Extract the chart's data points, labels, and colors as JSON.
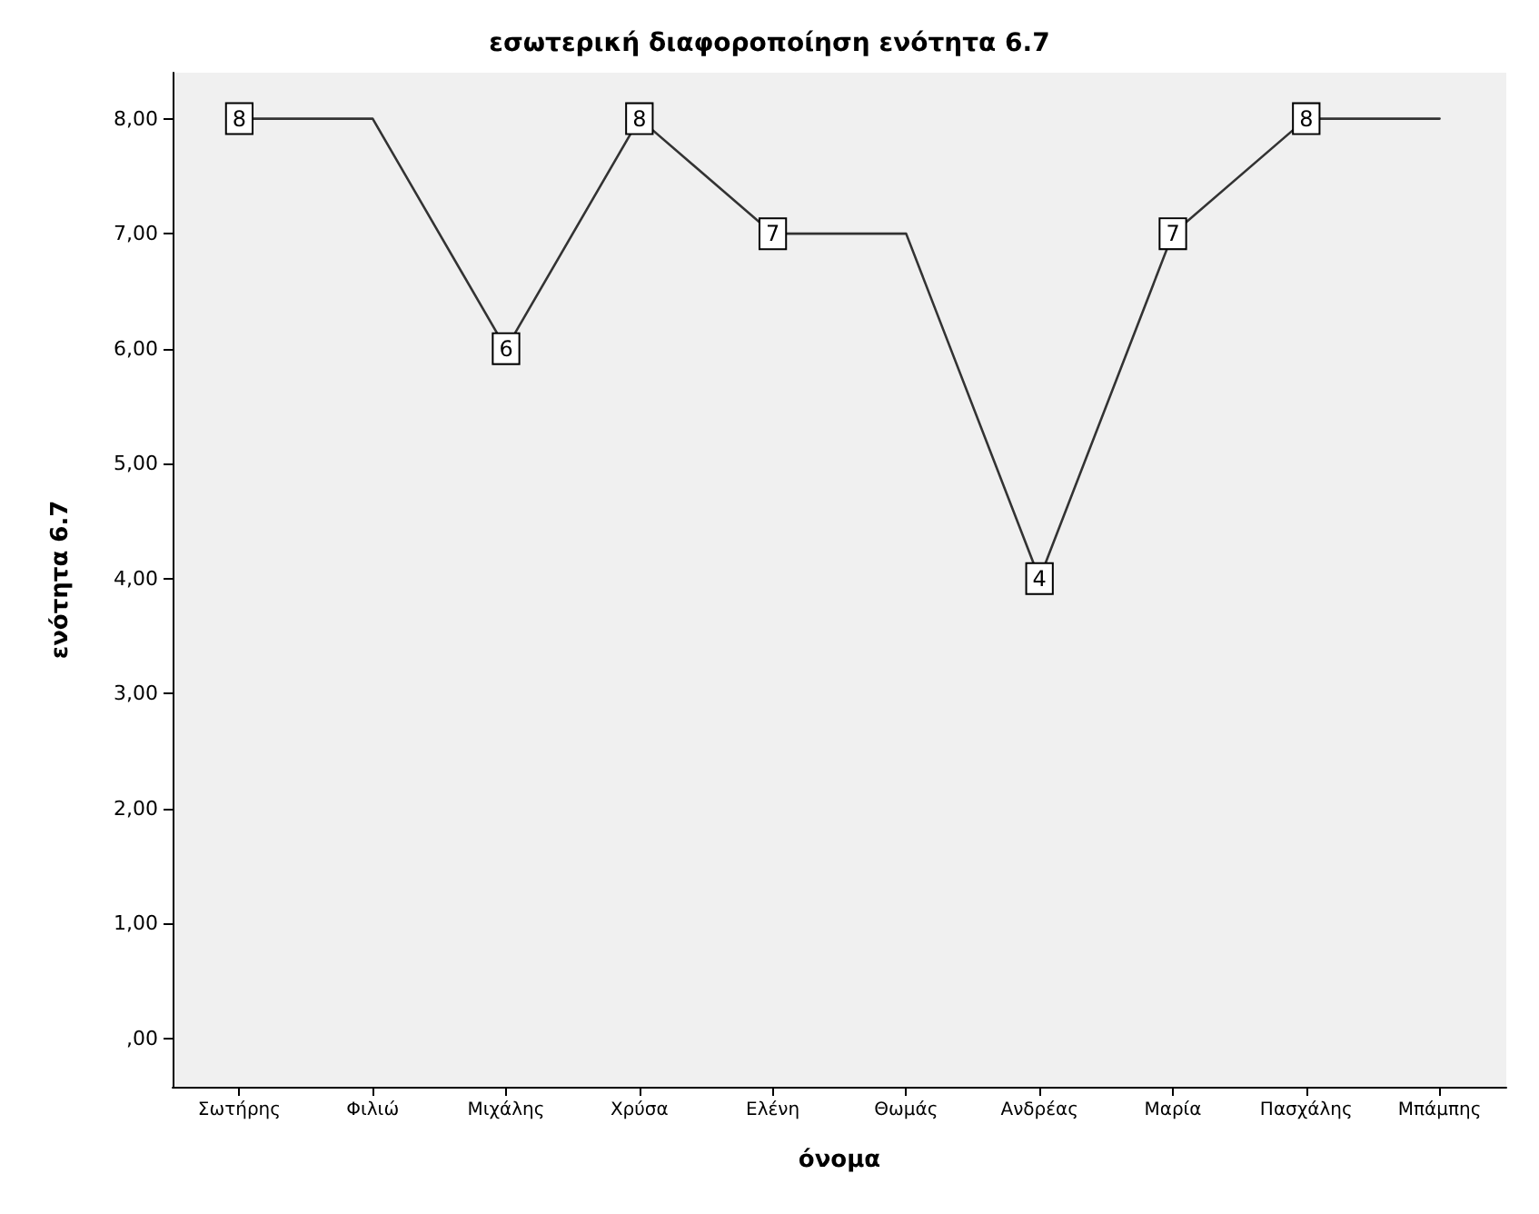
{
  "chart_data": {
    "type": "line",
    "title": "εσωτερική διαφοροποίηση ενότητα 6.7",
    "xlabel": "όνομα",
    "ylabel": "ενότητα 6.7",
    "categories": [
      "Σωτήρης",
      "Φιλιώ",
      "Μιχάλης",
      "Χρύσα",
      "Ελένη",
      "Θωμάς",
      "Ανδρέας",
      "Μαρία",
      "Πασχάλης",
      "Μπάμπης"
    ],
    "series": [
      {
        "color": "#333333",
        "values": [
          8,
          8,
          6,
          8,
          7,
          7,
          4,
          7,
          8,
          8
        ],
        "value_labels": [
          "8",
          null,
          "6",
          "8",
          "7",
          null,
          "4",
          "7",
          "8",
          null
        ]
      }
    ],
    "ylim": [
      -0.42,
      8.4
    ],
    "yticks": [
      {
        "value": 0,
        "label": ",00"
      },
      {
        "value": 1,
        "label": "1,00"
      },
      {
        "value": 2,
        "label": "2,00"
      },
      {
        "value": 3,
        "label": "3,00"
      },
      {
        "value": 4,
        "label": "4,00"
      },
      {
        "value": 5,
        "label": "5,00"
      },
      {
        "value": 6,
        "label": "6,00"
      },
      {
        "value": 7,
        "label": "7,00"
      },
      {
        "value": 8,
        "label": "8,00"
      }
    ],
    "line_style": "solid"
  }
}
